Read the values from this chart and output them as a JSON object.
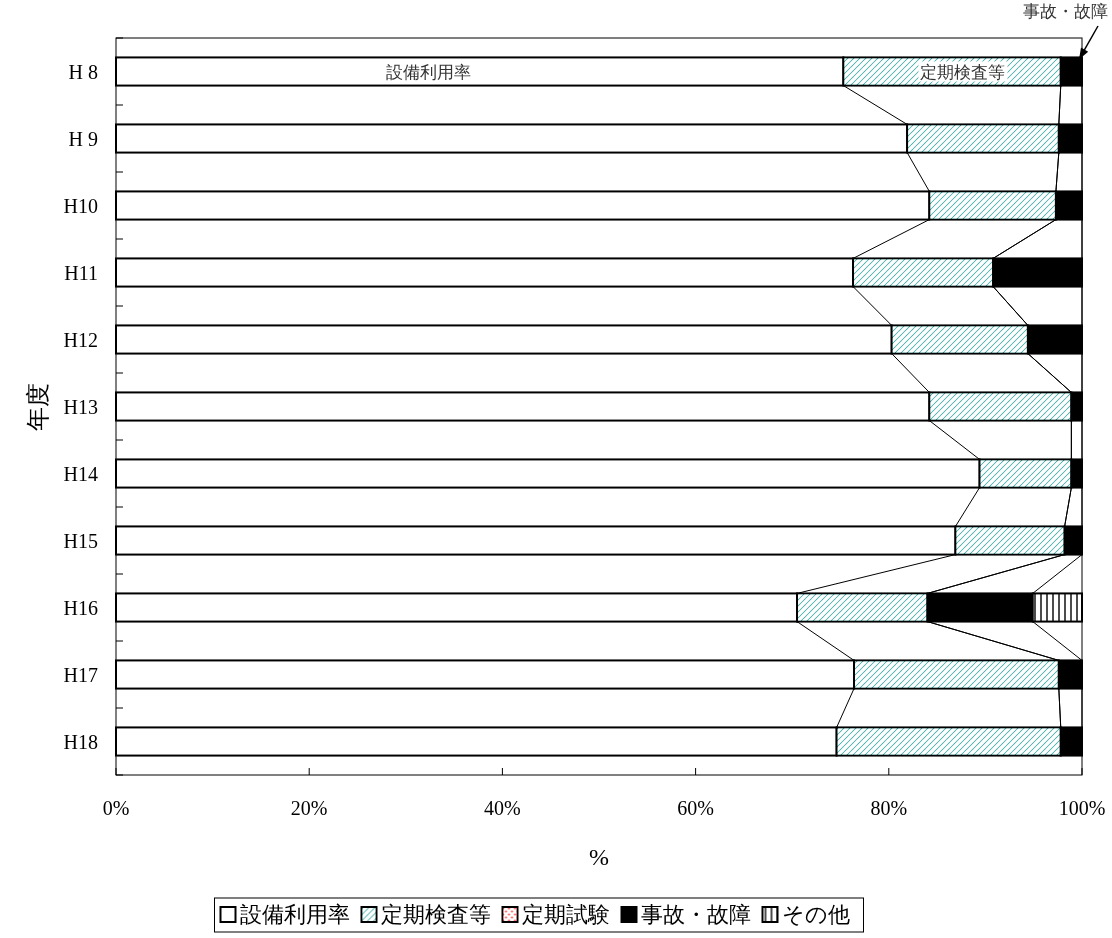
{
  "chart_data": {
    "type": "bar",
    "orientation": "horizontal",
    "stacked": true,
    "xlabel": "%",
    "ylabel": "年度",
    "categories": [
      "H 8",
      "H 9",
      "H10",
      "H11",
      "H12",
      "H13",
      "H14",
      "H15",
      "H16",
      "H17",
      "H18"
    ],
    "series": [
      {
        "name": "設備利用率",
        "color": "#ffffff",
        "values": [
          75.3,
          81.9,
          84.2,
          76.3,
          80.3,
          84.2,
          89.4,
          86.9,
          70.5,
          76.4,
          74.6
        ]
      },
      {
        "name": "定期検査等",
        "color": "#3aa8a8",
        "values": [
          22.5,
          15.7,
          13.1,
          14.5,
          14.1,
          14.7,
          9.5,
          11.3,
          13.5,
          21.2,
          23.2
        ]
      },
      {
        "name": "定期試験",
        "color": "#ff4040",
        "values": [
          0,
          0,
          0,
          0,
          0,
          0,
          0,
          0,
          0,
          0,
          0
        ]
      },
      {
        "name": "事故・故障",
        "color": "#000000",
        "values": [
          2.2,
          2.4,
          2.7,
          9.2,
          5.6,
          1.1,
          1.1,
          1.8,
          10.9,
          2.4,
          2.2
        ]
      },
      {
        "name": "その他",
        "color": "#000000",
        "values": [
          0,
          0,
          0,
          0,
          0,
          0,
          0,
          0,
          5.1,
          0,
          0
        ]
      }
    ],
    "xlim": [
      0,
      100
    ],
    "xticks": [
      {
        "value": 0,
        "label": "0%"
      },
      {
        "value": 20,
        "label": "20%"
      },
      {
        "value": 40,
        "label": "40%"
      },
      {
        "value": 60,
        "label": "60%"
      },
      {
        "value": 80,
        "label": "80%"
      },
      {
        "value": 100,
        "label": "100%"
      }
    ],
    "annotations": [
      "設備利用率",
      "定期検査等",
      {
        "text": "事故・故障",
        "x": 100,
        "y": "H 8"
      }
    ],
    "legend": "bottom"
  }
}
